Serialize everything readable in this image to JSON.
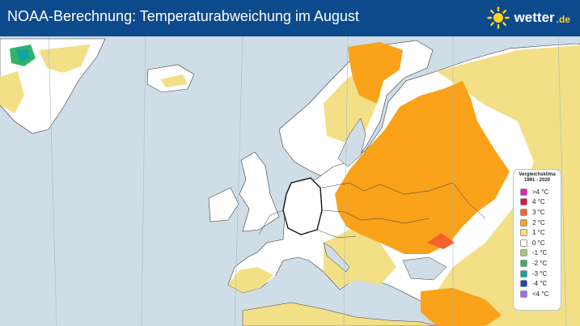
{
  "header": {
    "title": "NOAA-Berechnung: Temperaturabweichung im August",
    "brand_name": "wetter",
    "brand_tld": ".de"
  },
  "legend": {
    "title_line1": "Vergleichsklima",
    "title_line2": "1991 - 2020",
    "items": [
      {
        "label": ">4 °C",
        "color": "#e21ec8"
      },
      {
        "label": "4 °C",
        "color": "#e3104e"
      },
      {
        "label": "3 °C",
        "color": "#f5622a"
      },
      {
        "label": "2 °C",
        "color": "#f9a21a"
      },
      {
        "label": "1 °C",
        "color": "#f2df86"
      },
      {
        "label": "0 °C",
        "color": "#ffffff"
      },
      {
        "label": "-1 °C",
        "color": "#9bcc7c"
      },
      {
        "label": "-2 °C",
        "color": "#2fb36b"
      },
      {
        "label": "-3 °C",
        "color": "#12a3a3"
      },
      {
        "label": "-4 °C",
        "color": "#1f45b8"
      },
      {
        "label": "<4 °C",
        "color": "#9b6ee6"
      }
    ]
  },
  "colors": {
    "sea": "#cfdde6",
    "anomaly_0": "#ffffff",
    "anomaly_1": "#f2df86",
    "anomaly_2": "#f9a21a",
    "anomaly_3": "#f5622a",
    "header": "#0d4a8c"
  }
}
